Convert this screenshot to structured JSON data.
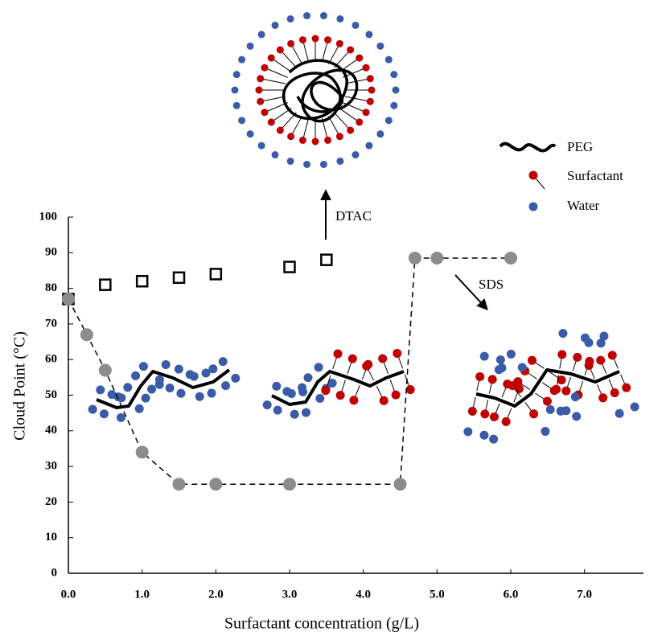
{
  "chart_data": {
    "type": "scatter",
    "xlabel": "Surfactant concentration (g/L)",
    "ylabel": "Cloud Point (°C)",
    "xlim": [
      0,
      7.8
    ],
    "ylim": [
      0,
      100
    ],
    "xticks": [
      {
        "value": 0,
        "label": "0.0"
      },
      {
        "value": 1,
        "label": "1.0"
      },
      {
        "value": 2,
        "label": "2.0"
      },
      {
        "value": 3,
        "label": "3.0"
      },
      {
        "value": 4,
        "label": "4.0"
      },
      {
        "value": 5,
        "label": "5.0"
      },
      {
        "value": 6,
        "label": "6.0"
      },
      {
        "value": 7,
        "label": "7.0"
      }
    ],
    "yticks": [
      0,
      10,
      20,
      30,
      40,
      50,
      60,
      70,
      80,
      90,
      100
    ],
    "series": [
      {
        "marker": "square",
        "color": "#000000",
        "line": false,
        "x": [
          0,
          0.5,
          1.0,
          1.5,
          2.0,
          3.0,
          3.5
        ],
        "values": [
          77,
          81,
          82,
          83,
          84,
          86,
          88
        ]
      },
      {
        "marker": "circle",
        "color": "#8c8c8c",
        "line": true,
        "x": [
          0,
          0.25,
          0.5,
          1.0,
          1.5,
          2.0,
          3.0,
          4.5,
          4.7,
          5.0,
          6.0
        ],
        "values": [
          77,
          67,
          57,
          34,
          25,
          25,
          25,
          25,
          88.5,
          88.5,
          88.5
        ]
      }
    ],
    "annotations": [
      "DTAC",
      "SDS"
    ],
    "illustration_legend": [
      "PEG",
      "Surfactant",
      "Water"
    ]
  }
}
